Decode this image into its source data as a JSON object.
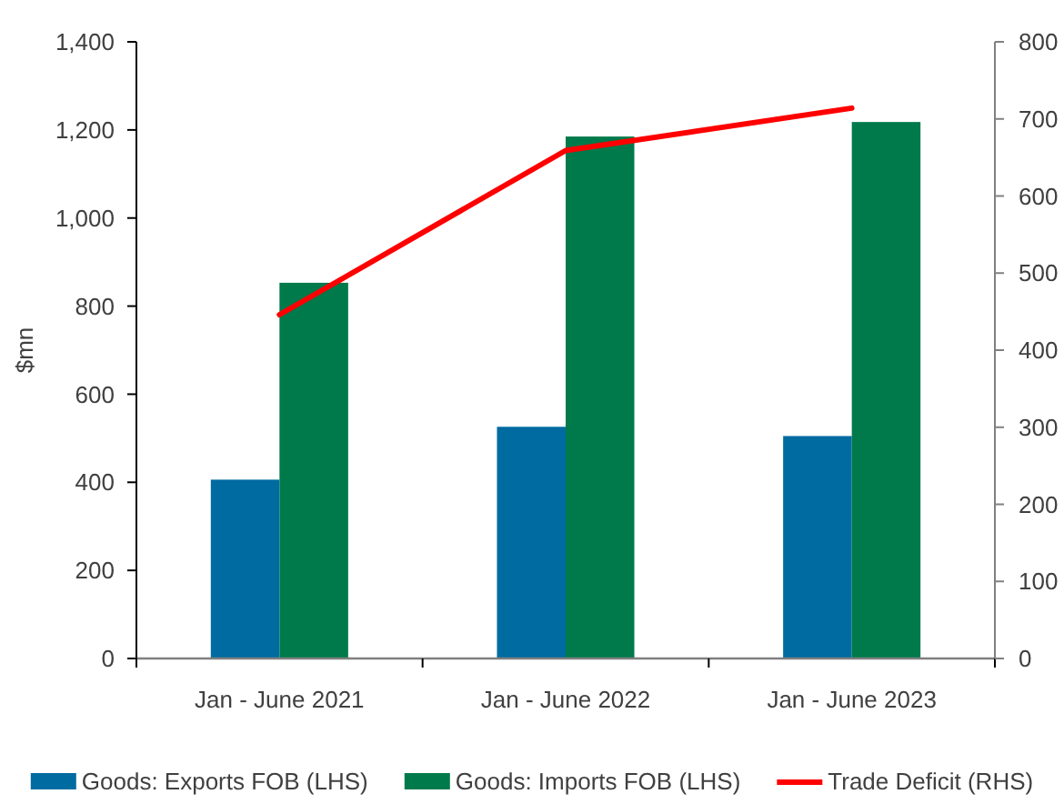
{
  "chart_data": {
    "type": "bar",
    "ylabel": "$mn",
    "categories": [
      "Jan - June 2021",
      "Jan - June 2022",
      "Jan - June 2023"
    ],
    "series": [
      {
        "name": "Goods: Exports FOB (LHS)",
        "color": "#006ba1",
        "values": [
          406,
          526,
          505
        ]
      },
      {
        "name": "Goods: Imports FOB (LHS)",
        "color": "#007a4b",
        "values": [
          853,
          1185,
          1218
        ]
      },
      {
        "name": "Trade Deficit (RHS)",
        "type": "line",
        "axis": "y2",
        "color": "#ff0000",
        "values": [
          446,
          659,
          714
        ]
      }
    ],
    "ylim": [
      0,
      1400
    ],
    "yticks": [
      0,
      200,
      400,
      600,
      800,
      {
        "value": 1000,
        "label": "1,000"
      },
      {
        "value": 1200,
        "label": "1,200"
      },
      {
        "value": 1400,
        "label": "1,400"
      }
    ],
    "y2lim": [
      0,
      800
    ],
    "y2ticks": [
      0,
      100,
      200,
      300,
      400,
      500,
      600,
      700,
      800
    ],
    "legend": "bottom"
  }
}
